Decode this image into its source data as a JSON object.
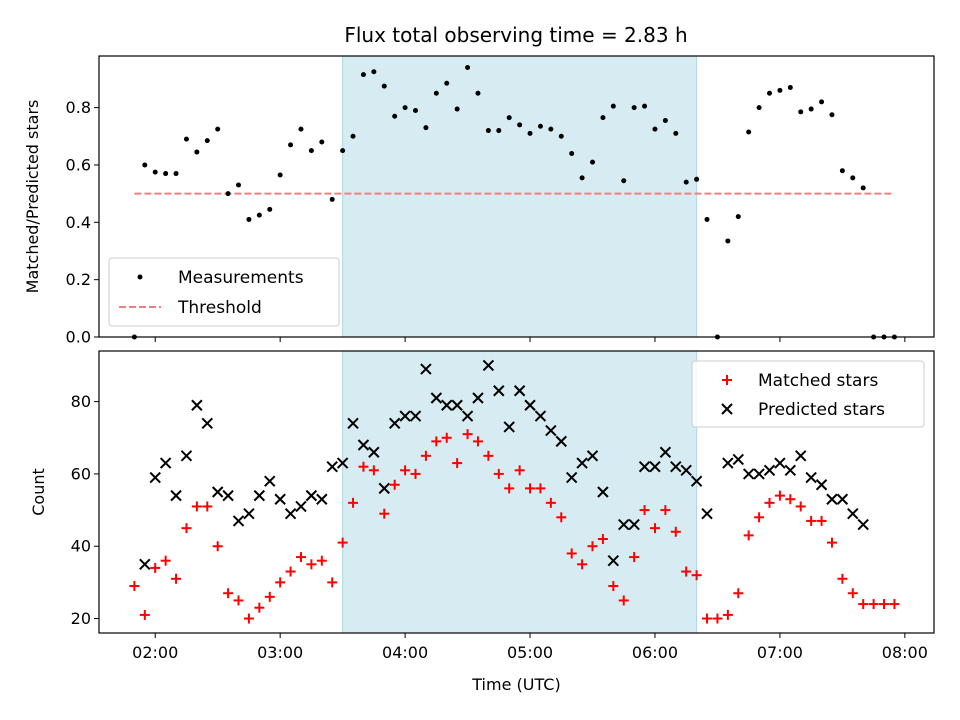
{
  "figure": {
    "title": "Flux total observing time = 2.83 h"
  },
  "colors": {
    "band": "#add8e6",
    "threshold": "#f08080",
    "matched": "#ff0000",
    "predicted": "#000000",
    "measurement": "#000000"
  },
  "chart_data": [
    {
      "type": "scatter",
      "ylabel": "Matched/Predicted stars",
      "xlabel": "",
      "xlim": [
        "01:33",
        "08:14"
      ],
      "ylim": [
        0,
        0.98
      ],
      "yticks": [
        0.0,
        0.2,
        0.4,
        0.6,
        0.8
      ],
      "ytick_labels": [
        "0.0",
        "0.2",
        "0.4",
        "0.6",
        "0.8"
      ],
      "shaded_band": [
        "03:30",
        "06:20"
      ],
      "legend": {
        "placement": "lower-left",
        "entries": [
          "Measurements",
          "Threshold"
        ]
      },
      "threshold": {
        "name": "Threshold",
        "y": 0.5,
        "x": [
          "01:50",
          "07:55"
        ]
      },
      "series": [
        {
          "name": "Measurements",
          "points": [
            [
              "01:50",
              0.0
            ],
            [
              "01:55",
              0.6
            ],
            [
              "02:00",
              0.575
            ],
            [
              "02:05",
              0.57
            ],
            [
              "02:10",
              0.57
            ],
            [
              "02:15",
              0.69
            ],
            [
              "02:20",
              0.645
            ],
            [
              "02:25",
              0.685
            ],
            [
              "02:30",
              0.725
            ],
            [
              "02:35",
              0.5
            ],
            [
              "02:40",
              0.53
            ],
            [
              "02:45",
              0.41
            ],
            [
              "02:50",
              0.425
            ],
            [
              "02:55",
              0.445
            ],
            [
              "03:00",
              0.565
            ],
            [
              "03:05",
              0.67
            ],
            [
              "03:10",
              0.725
            ],
            [
              "03:15",
              0.65
            ],
            [
              "03:20",
              0.68
            ],
            [
              "03:25",
              0.48
            ],
            [
              "03:30",
              0.65
            ],
            [
              "03:35",
              0.7
            ],
            [
              "03:40",
              0.915
            ],
            [
              "03:45",
              0.925
            ],
            [
              "03:50",
              0.875
            ],
            [
              "03:55",
              0.77
            ],
            [
              "04:00",
              0.8
            ],
            [
              "04:05",
              0.79
            ],
            [
              "04:10",
              0.73
            ],
            [
              "04:15",
              0.85
            ],
            [
              "04:20",
              0.885
            ],
            [
              "04:25",
              0.795
            ],
            [
              "04:30",
              0.94
            ],
            [
              "04:35",
              0.85
            ],
            [
              "04:40",
              0.72
            ],
            [
              "04:45",
              0.72
            ],
            [
              "04:50",
              0.765
            ],
            [
              "04:55",
              0.74
            ],
            [
              "05:00",
              0.71
            ],
            [
              "05:05",
              0.735
            ],
            [
              "05:10",
              0.725
            ],
            [
              "05:15",
              0.7
            ],
            [
              "05:20",
              0.64
            ],
            [
              "05:25",
              0.555
            ],
            [
              "05:30",
              0.61
            ],
            [
              "05:35",
              0.765
            ],
            [
              "05:40",
              0.805
            ],
            [
              "05:45",
              0.545
            ],
            [
              "05:50",
              0.8
            ],
            [
              "05:55",
              0.805
            ],
            [
              "06:00",
              0.725
            ],
            [
              "06:05",
              0.755
            ],
            [
              "06:10",
              0.71
            ],
            [
              "06:15",
              0.54
            ],
            [
              "06:20",
              0.55
            ],
            [
              "06:25",
              0.41
            ],
            [
              "06:30",
              0.0
            ],
            [
              "06:35",
              0.335
            ],
            [
              "06:40",
              0.42
            ],
            [
              "06:45",
              0.715
            ],
            [
              "06:50",
              0.8
            ],
            [
              "06:55",
              0.85
            ],
            [
              "07:00",
              0.86
            ],
            [
              "07:05",
              0.87
            ],
            [
              "07:10",
              0.785
            ],
            [
              "07:15",
              0.795
            ],
            [
              "07:20",
              0.82
            ],
            [
              "07:25",
              0.775
            ],
            [
              "07:30",
              0.58
            ],
            [
              "07:35",
              0.555
            ],
            [
              "07:40",
              0.52
            ],
            [
              "07:45",
              0.0
            ],
            [
              "07:50",
              0.0
            ],
            [
              "07:55",
              0.0
            ]
          ]
        }
      ]
    },
    {
      "type": "scatter",
      "ylabel": "Count",
      "xlabel": "Time (UTC)",
      "xlim": [
        "01:33",
        "08:14"
      ],
      "ylim": [
        16,
        94
      ],
      "yticks": [
        20,
        40,
        60,
        80
      ],
      "ytick_labels": [
        "20",
        "40",
        "60",
        "80"
      ],
      "xticks": [
        "02:00",
        "03:00",
        "04:00",
        "05:00",
        "06:00",
        "07:00",
        "08:00"
      ],
      "xtick_labels": [
        "02:00",
        "03:00",
        "04:00",
        "05:00",
        "06:00",
        "07:00",
        "08:00"
      ],
      "shaded_band": [
        "03:30",
        "06:20"
      ],
      "legend": {
        "placement": "top-right",
        "entries": [
          "Matched stars",
          "Predicted stars"
        ]
      },
      "series": [
        {
          "name": "Matched stars",
          "marker": "plus",
          "points": [
            [
              "01:50",
              29
            ],
            [
              "01:55",
              21
            ],
            [
              "02:00",
              34
            ],
            [
              "02:05",
              36
            ],
            [
              "02:10",
              31
            ],
            [
              "02:15",
              45
            ],
            [
              "02:20",
              51
            ],
            [
              "02:25",
              51
            ],
            [
              "02:30",
              40
            ],
            [
              "02:35",
              27
            ],
            [
              "02:40",
              25
            ],
            [
              "02:45",
              20
            ],
            [
              "02:50",
              23
            ],
            [
              "02:55",
              26
            ],
            [
              "03:00",
              30
            ],
            [
              "03:05",
              33
            ],
            [
              "03:10",
              37
            ],
            [
              "03:15",
              35
            ],
            [
              "03:20",
              36
            ],
            [
              "03:25",
              30
            ],
            [
              "03:30",
              41
            ],
            [
              "03:35",
              52
            ],
            [
              "03:40",
              62
            ],
            [
              "03:45",
              61
            ],
            [
              "03:50",
              49
            ],
            [
              "03:55",
              57
            ],
            [
              "04:00",
              61
            ],
            [
              "04:05",
              60
            ],
            [
              "04:10",
              65
            ],
            [
              "04:15",
              69
            ],
            [
              "04:20",
              70
            ],
            [
              "04:25",
              63
            ],
            [
              "04:30",
              71
            ],
            [
              "04:35",
              69
            ],
            [
              "04:40",
              65
            ],
            [
              "04:45",
              60
            ],
            [
              "04:50",
              56
            ],
            [
              "04:55",
              61
            ],
            [
              "05:00",
              56
            ],
            [
              "05:05",
              56
            ],
            [
              "05:10",
              52
            ],
            [
              "05:15",
              48
            ],
            [
              "05:20",
              38
            ],
            [
              "05:25",
              35
            ],
            [
              "05:30",
              40
            ],
            [
              "05:35",
              42
            ],
            [
              "05:40",
              29
            ],
            [
              "05:45",
              25
            ],
            [
              "05:50",
              37
            ],
            [
              "05:55",
              50
            ],
            [
              "06:00",
              45
            ],
            [
              "06:05",
              50
            ],
            [
              "06:10",
              44
            ],
            [
              "06:15",
              33
            ],
            [
              "06:20",
              32
            ],
            [
              "06:25",
              20
            ],
            [
              "06:30",
              20
            ],
            [
              "06:35",
              21
            ],
            [
              "06:40",
              27
            ],
            [
              "06:45",
              43
            ],
            [
              "06:50",
              48
            ],
            [
              "06:55",
              52
            ],
            [
              "07:00",
              54
            ],
            [
              "07:05",
              53
            ],
            [
              "07:10",
              51
            ],
            [
              "07:15",
              47
            ],
            [
              "07:20",
              47
            ],
            [
              "07:25",
              41
            ],
            [
              "07:30",
              31
            ],
            [
              "07:35",
              27
            ],
            [
              "07:40",
              24
            ],
            [
              "07:45",
              24
            ],
            [
              "07:50",
              24
            ],
            [
              "07:55",
              24
            ]
          ]
        },
        {
          "name": "Predicted stars",
          "marker": "x",
          "points": [
            [
              "01:55",
              35
            ],
            [
              "02:00",
              59
            ],
            [
              "02:05",
              63
            ],
            [
              "02:10",
              54
            ],
            [
              "02:15",
              65
            ],
            [
              "02:20",
              79
            ],
            [
              "02:25",
              74
            ],
            [
              "02:30",
              55
            ],
            [
              "02:35",
              54
            ],
            [
              "02:40",
              47
            ],
            [
              "02:45",
              49
            ],
            [
              "02:50",
              54
            ],
            [
              "02:55",
              58
            ],
            [
              "03:00",
              53
            ],
            [
              "03:05",
              49
            ],
            [
              "03:10",
              51
            ],
            [
              "03:15",
              54
            ],
            [
              "03:20",
              53
            ],
            [
              "03:25",
              62
            ],
            [
              "03:30",
              63
            ],
            [
              "03:35",
              74
            ],
            [
              "03:40",
              68
            ],
            [
              "03:45",
              66
            ],
            [
              "03:50",
              56
            ],
            [
              "03:55",
              74
            ],
            [
              "04:00",
              76
            ],
            [
              "04:05",
              76
            ],
            [
              "04:10",
              89
            ],
            [
              "04:15",
              81
            ],
            [
              "04:20",
              79
            ],
            [
              "04:25",
              79
            ],
            [
              "04:30",
              76
            ],
            [
              "04:35",
              81
            ],
            [
              "04:40",
              90
            ],
            [
              "04:45",
              83
            ],
            [
              "04:50",
              73
            ],
            [
              "04:55",
              83
            ],
            [
              "05:00",
              79
            ],
            [
              "05:05",
              76
            ],
            [
              "05:10",
              72
            ],
            [
              "05:15",
              69
            ],
            [
              "05:20",
              59
            ],
            [
              "05:25",
              63
            ],
            [
              "05:30",
              65
            ],
            [
              "05:35",
              55
            ],
            [
              "05:40",
              36
            ],
            [
              "05:45",
              46
            ],
            [
              "05:50",
              46
            ],
            [
              "05:55",
              62
            ],
            [
              "06:00",
              62
            ],
            [
              "06:05",
              66
            ],
            [
              "06:10",
              62
            ],
            [
              "06:15",
              61
            ],
            [
              "06:20",
              58
            ],
            [
              "06:25",
              49
            ],
            [
              "06:35",
              63
            ],
            [
              "06:40",
              64
            ],
            [
              "06:45",
              60
            ],
            [
              "06:50",
              60
            ],
            [
              "06:55",
              61
            ],
            [
              "07:00",
              63
            ],
            [
              "07:05",
              61
            ],
            [
              "07:10",
              65
            ],
            [
              "07:15",
              59
            ],
            [
              "07:20",
              57
            ],
            [
              "07:25",
              53
            ],
            [
              "07:30",
              53
            ],
            [
              "07:35",
              49
            ],
            [
              "07:40",
              46
            ]
          ]
        }
      ]
    }
  ]
}
